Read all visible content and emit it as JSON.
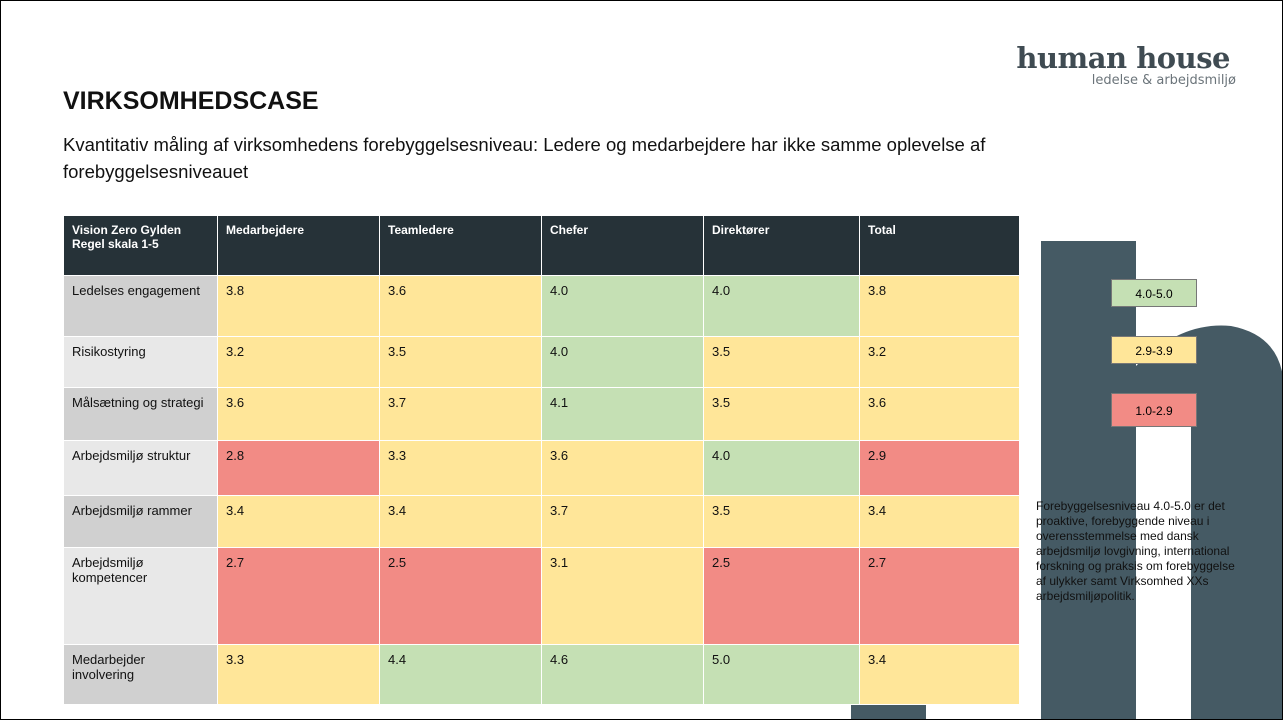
{
  "logo": {
    "name": "human house",
    "tagline": "ledelse & arbejdsmiljø"
  },
  "header": {
    "title": "VIRKSOMHEDSCASE",
    "subtitle": "Kvantitativ måling af virksomhedens forebyggelsesniveau: Ledere og medarbejdere har ikke samme oplevelse af forebyggelsesniveauet"
  },
  "table": {
    "columns": [
      "Vision Zero Gylden Regel skala 1-5",
      "Medarbejdere",
      "Teamledere",
      "Chefer",
      "Direktører",
      "Total"
    ],
    "rows": [
      {
        "label": "Ledelses engagement",
        "values": [
          "3.8",
          "3.6",
          "4.0",
          "4.0",
          "3.8"
        ],
        "colors": [
          "#ffe699",
          "#ffe699",
          "#c5e0b4",
          "#c5e0b4",
          "#ffe699"
        ]
      },
      {
        "label": "Risikostyring",
        "values": [
          "3.2",
          "3.5",
          "4.0",
          "3.5",
          "3.2"
        ],
        "colors": [
          "#ffe699",
          "#ffe699",
          "#c5e0b4",
          "#ffe699",
          "#ffe699"
        ]
      },
      {
        "label": "Målsætning og strategi",
        "values": [
          "3.6",
          "3.7",
          "4.1",
          "3.5",
          "3.6"
        ],
        "colors": [
          "#ffe699",
          "#ffe699",
          "#c5e0b4",
          "#ffe699",
          "#ffe699"
        ]
      },
      {
        "label": "Arbejdsmiljø struktur",
        "values": [
          "2.8",
          "3.3",
          "3.6",
          "4.0",
          "2.9"
        ],
        "colors": [
          "#f28b85",
          "#ffe699",
          "#ffe699",
          "#c5e0b4",
          "#f28b85"
        ]
      },
      {
        "label": "Arbejdsmiljø rammer",
        "values": [
          "3.4",
          "3.4",
          "3.7",
          "3.5",
          "3.4"
        ],
        "colors": [
          "#ffe699",
          "#ffe699",
          "#ffe699",
          "#ffe699",
          "#ffe699"
        ]
      },
      {
        "label": "Arbejdsmiljø kompetencer",
        "values": [
          "2.7",
          "2.5",
          "3.1",
          "2.5",
          "2.7"
        ],
        "colors": [
          "#f28b85",
          "#f28b85",
          "#ffe699",
          "#f28b85",
          "#f28b85"
        ]
      },
      {
        "label": "Medarbejder involvering",
        "values": [
          "3.3",
          "4.4",
          "4.6",
          "5.0",
          "3.4"
        ],
        "colors": [
          "#ffe699",
          "#c5e0b4",
          "#c5e0b4",
          "#c5e0b4",
          "#ffe699"
        ]
      }
    ]
  },
  "legend": [
    {
      "label": "4.0-5.0",
      "color": "#c5e0b4"
    },
    {
      "label": "2.9-3.9",
      "color": "#ffe699"
    },
    {
      "label": "1.0-2.9",
      "color": "#f28b85"
    }
  ],
  "note": "Forebyggelsesniveau 4.0-5.0 er det proaktive, forebyggende niveau i overensstemmelse med dansk arbejdsmiljø lovgivning, international forskning og praksis om forebyggelse af ulykker samt Virksomhed XXs arbejdsmiljøpolitik."
}
